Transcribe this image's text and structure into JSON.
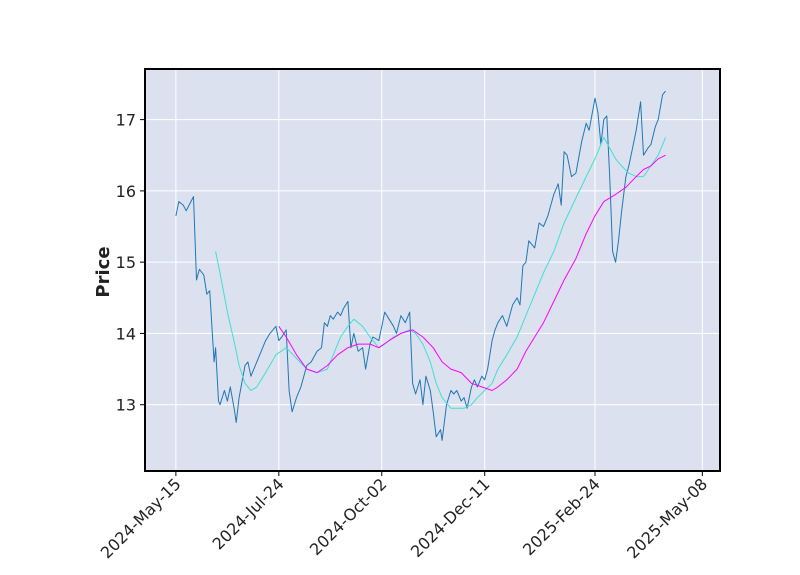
{
  "chart_data": {
    "type": "line",
    "ylabel": "Price",
    "xlabel": "",
    "ylim": [
      12.07,
      17.71
    ],
    "x_range": [
      "2024-04-24",
      "2025-05-20"
    ],
    "grid": true,
    "background_color": "#dce1ef",
    "x_tick_labels": [
      "2024-May-15",
      "2024-Jul-24",
      "2024-Oct-02",
      "2024-Dec-11",
      "2025-Feb-24",
      "2025-May-08"
    ],
    "x_tick_dates": [
      "2024-05-15",
      "2024-07-24",
      "2024-10-02",
      "2024-12-11",
      "2025-02-24",
      "2025-05-08"
    ],
    "y_ticks": [
      13,
      14,
      15,
      16,
      17
    ],
    "series": [
      {
        "color": "#1f77b4",
        "points": [
          [
            "2024-05-15",
            15.65
          ],
          [
            "2024-05-17",
            15.85
          ],
          [
            "2024-05-20",
            15.8
          ],
          [
            "2024-05-22",
            15.72
          ],
          [
            "2024-05-24",
            15.8
          ],
          [
            "2024-05-27",
            15.92
          ],
          [
            "2024-05-29",
            14.75
          ],
          [
            "2024-05-31",
            14.9
          ],
          [
            "2024-06-03",
            14.82
          ],
          [
            "2024-06-05",
            14.55
          ],
          [
            "2024-06-07",
            14.6
          ],
          [
            "2024-06-10",
            13.6
          ],
          [
            "2024-06-11",
            13.8
          ],
          [
            "2024-06-13",
            13.05
          ],
          [
            "2024-06-14",
            13.0
          ],
          [
            "2024-06-17",
            13.2
          ],
          [
            "2024-06-19",
            13.05
          ],
          [
            "2024-06-21",
            13.25
          ],
          [
            "2024-06-24",
            12.9
          ],
          [
            "2024-06-25",
            12.75
          ],
          [
            "2024-06-27",
            13.1
          ],
          [
            "2024-07-01",
            13.55
          ],
          [
            "2024-07-03",
            13.6
          ],
          [
            "2024-07-05",
            13.4
          ],
          [
            "2024-07-09",
            13.6
          ],
          [
            "2024-07-12",
            13.75
          ],
          [
            "2024-07-15",
            13.9
          ],
          [
            "2024-07-18",
            14.0
          ],
          [
            "2024-07-22",
            14.1
          ],
          [
            "2024-07-24",
            13.9
          ],
          [
            "2024-07-26",
            13.95
          ],
          [
            "2024-07-29",
            14.05
          ],
          [
            "2024-07-31",
            13.2
          ],
          [
            "2024-08-02",
            12.9
          ],
          [
            "2024-08-05",
            13.1
          ],
          [
            "2024-08-08",
            13.25
          ],
          [
            "2024-08-12",
            13.55
          ],
          [
            "2024-08-15",
            13.6
          ],
          [
            "2024-08-19",
            13.75
          ],
          [
            "2024-08-22",
            13.8
          ],
          [
            "2024-08-24",
            14.15
          ],
          [
            "2024-08-26",
            14.1
          ],
          [
            "2024-08-28",
            14.25
          ],
          [
            "2024-08-30",
            14.2
          ],
          [
            "2024-09-02",
            14.3
          ],
          [
            "2024-09-04",
            14.25
          ],
          [
            "2024-09-06",
            14.35
          ],
          [
            "2024-09-09",
            14.45
          ],
          [
            "2024-09-11",
            13.8
          ],
          [
            "2024-09-13",
            14.0
          ],
          [
            "2024-09-16",
            13.75
          ],
          [
            "2024-09-19",
            13.8
          ],
          [
            "2024-09-21",
            13.5
          ],
          [
            "2024-09-24",
            13.85
          ],
          [
            "2024-09-26",
            13.95
          ],
          [
            "2024-09-30",
            13.9
          ],
          [
            "2024-10-02",
            14.1
          ],
          [
            "2024-10-04",
            14.3
          ],
          [
            "2024-10-07",
            14.2
          ],
          [
            "2024-10-10",
            14.1
          ],
          [
            "2024-10-12",
            14.0
          ],
          [
            "2024-10-15",
            14.25
          ],
          [
            "2024-10-18",
            14.15
          ],
          [
            "2024-10-21",
            14.3
          ],
          [
            "2024-10-23",
            13.3
          ],
          [
            "2024-10-25",
            13.15
          ],
          [
            "2024-10-28",
            13.35
          ],
          [
            "2024-10-30",
            13.0
          ],
          [
            "2024-11-01",
            13.4
          ],
          [
            "2024-11-04",
            13.2
          ],
          [
            "2024-11-06",
            12.9
          ],
          [
            "2024-11-08",
            12.55
          ],
          [
            "2024-11-11",
            12.65
          ],
          [
            "2024-11-12",
            12.5
          ],
          [
            "2024-11-15",
            13.0
          ],
          [
            "2024-11-18",
            13.2
          ],
          [
            "2024-11-20",
            13.15
          ],
          [
            "2024-11-22",
            13.2
          ],
          [
            "2024-11-25",
            13.05
          ],
          [
            "2024-11-27",
            13.1
          ],
          [
            "2024-11-29",
            12.95
          ],
          [
            "2024-12-02",
            13.25
          ],
          [
            "2024-12-04",
            13.35
          ],
          [
            "2024-12-06",
            13.25
          ],
          [
            "2024-12-09",
            13.4
          ],
          [
            "2024-12-11",
            13.35
          ],
          [
            "2024-12-13",
            13.5
          ],
          [
            "2024-12-16",
            13.9
          ],
          [
            "2024-12-18",
            14.05
          ],
          [
            "2024-12-20",
            14.15
          ],
          [
            "2024-12-23",
            14.25
          ],
          [
            "2024-12-26",
            14.1
          ],
          [
            "2024-12-30",
            14.4
          ],
          [
            "2025-01-02",
            14.5
          ],
          [
            "2025-01-04",
            14.4
          ],
          [
            "2025-01-06",
            14.95
          ],
          [
            "2025-01-08",
            15.0
          ],
          [
            "2025-01-10",
            15.3
          ],
          [
            "2025-01-14",
            15.2
          ],
          [
            "2025-01-17",
            15.55
          ],
          [
            "2025-01-20",
            15.5
          ],
          [
            "2025-01-23",
            15.65
          ],
          [
            "2025-01-27",
            15.95
          ],
          [
            "2025-01-30",
            16.1
          ],
          [
            "2025-02-01",
            15.8
          ],
          [
            "2025-02-03",
            16.55
          ],
          [
            "2025-02-05",
            16.5
          ],
          [
            "2025-02-08",
            16.2
          ],
          [
            "2025-02-11",
            16.25
          ],
          [
            "2025-02-15",
            16.7
          ],
          [
            "2025-02-18",
            16.95
          ],
          [
            "2025-02-20",
            16.85
          ],
          [
            "2025-02-24",
            17.3
          ],
          [
            "2025-02-26",
            17.1
          ],
          [
            "2025-02-28",
            16.65
          ],
          [
            "2025-03-02",
            17.0
          ],
          [
            "2025-03-04",
            17.05
          ],
          [
            "2025-03-06",
            16.2
          ],
          [
            "2025-03-08",
            15.15
          ],
          [
            "2025-03-10",
            15.0
          ],
          [
            "2025-03-12",
            15.3
          ],
          [
            "2025-03-14",
            15.7
          ],
          [
            "2025-03-17",
            16.2
          ],
          [
            "2025-03-19",
            16.35
          ],
          [
            "2025-03-21",
            16.55
          ],
          [
            "2025-03-24",
            16.85
          ],
          [
            "2025-03-27",
            17.25
          ],
          [
            "2025-03-29",
            16.5
          ],
          [
            "2025-04-01",
            16.6
          ],
          [
            "2025-04-03",
            16.65
          ],
          [
            "2025-04-06",
            16.9
          ],
          [
            "2025-04-08",
            17.0
          ],
          [
            "2025-04-11",
            17.35
          ],
          [
            "2025-04-13",
            17.4
          ]
        ]
      },
      {
        "color": "#40e0d0",
        "points": [
          [
            "2024-06-11",
            15.15
          ],
          [
            "2024-06-14",
            14.85
          ],
          [
            "2024-06-19",
            14.3
          ],
          [
            "2024-06-24",
            13.85
          ],
          [
            "2024-06-27",
            13.55
          ],
          [
            "2024-07-01",
            13.3
          ],
          [
            "2024-07-05",
            13.2
          ],
          [
            "2024-07-09",
            13.25
          ],
          [
            "2024-07-15",
            13.45
          ],
          [
            "2024-07-22",
            13.7
          ],
          [
            "2024-07-29",
            13.8
          ],
          [
            "2024-08-05",
            13.65
          ],
          [
            "2024-08-12",
            13.5
          ],
          [
            "2024-08-19",
            13.45
          ],
          [
            "2024-08-26",
            13.5
          ],
          [
            "2024-08-30",
            13.7
          ],
          [
            "2024-09-04",
            13.95
          ],
          [
            "2024-09-09",
            14.1
          ],
          [
            "2024-09-13",
            14.2
          ],
          [
            "2024-09-19",
            14.1
          ],
          [
            "2024-09-24",
            13.95
          ],
          [
            "2024-09-30",
            13.8
          ],
          [
            "2024-10-04",
            13.85
          ],
          [
            "2024-10-10",
            13.95
          ],
          [
            "2024-10-15",
            14.0
          ],
          [
            "2024-10-21",
            14.05
          ],
          [
            "2024-10-25",
            14.0
          ],
          [
            "2024-10-30",
            13.85
          ],
          [
            "2024-11-04",
            13.6
          ],
          [
            "2024-11-08",
            13.3
          ],
          [
            "2024-11-12",
            13.1
          ],
          [
            "2024-11-18",
            12.95
          ],
          [
            "2024-11-22",
            12.95
          ],
          [
            "2024-11-27",
            12.95
          ],
          [
            "2024-12-02",
            13.0
          ],
          [
            "2024-12-06",
            13.1
          ],
          [
            "2024-12-11",
            13.2
          ],
          [
            "2024-12-16",
            13.3
          ],
          [
            "2024-12-20",
            13.5
          ],
          [
            "2024-12-26",
            13.7
          ],
          [
            "2025-01-02",
            13.95
          ],
          [
            "2025-01-08",
            14.25
          ],
          [
            "2025-01-14",
            14.55
          ],
          [
            "2025-01-20",
            14.85
          ],
          [
            "2025-01-27",
            15.15
          ],
          [
            "2025-02-03",
            15.55
          ],
          [
            "2025-02-11",
            15.9
          ],
          [
            "2025-02-18",
            16.2
          ],
          [
            "2025-02-24",
            16.45
          ],
          [
            "2025-02-28",
            16.65
          ],
          [
            "2025-03-02",
            16.75
          ],
          [
            "2025-03-06",
            16.6
          ],
          [
            "2025-03-10",
            16.45
          ],
          [
            "2025-03-14",
            16.35
          ],
          [
            "2025-03-19",
            16.25
          ],
          [
            "2025-03-24",
            16.2
          ],
          [
            "2025-03-29",
            16.2
          ],
          [
            "2025-04-03",
            16.35
          ],
          [
            "2025-04-08",
            16.5
          ],
          [
            "2025-04-13",
            16.75
          ]
        ]
      },
      {
        "color": "#ff00ff",
        "points": [
          [
            "2024-07-24",
            14.1
          ],
          [
            "2024-07-29",
            13.95
          ],
          [
            "2024-08-05",
            13.7
          ],
          [
            "2024-08-12",
            13.5
          ],
          [
            "2024-08-19",
            13.45
          ],
          [
            "2024-08-26",
            13.55
          ],
          [
            "2024-09-02",
            13.7
          ],
          [
            "2024-09-09",
            13.8
          ],
          [
            "2024-09-16",
            13.85
          ],
          [
            "2024-09-24",
            13.85
          ],
          [
            "2024-09-30",
            13.8
          ],
          [
            "2024-10-07",
            13.9
          ],
          [
            "2024-10-15",
            14.0
          ],
          [
            "2024-10-23",
            14.05
          ],
          [
            "2024-10-30",
            13.95
          ],
          [
            "2024-11-06",
            13.8
          ],
          [
            "2024-11-12",
            13.6
          ],
          [
            "2024-11-18",
            13.5
          ],
          [
            "2024-11-25",
            13.45
          ],
          [
            "2024-12-02",
            13.3
          ],
          [
            "2024-12-09",
            13.25
          ],
          [
            "2024-12-16",
            13.2
          ],
          [
            "2024-12-20",
            13.25
          ],
          [
            "2024-12-26",
            13.35
          ],
          [
            "2025-01-02",
            13.5
          ],
          [
            "2025-01-08",
            13.75
          ],
          [
            "2025-01-14",
            13.95
          ],
          [
            "2025-01-20",
            14.15
          ],
          [
            "2025-01-27",
            14.45
          ],
          [
            "2025-02-03",
            14.75
          ],
          [
            "2025-02-11",
            15.05
          ],
          [
            "2025-02-18",
            15.4
          ],
          [
            "2025-02-24",
            15.65
          ],
          [
            "2025-03-02",
            15.85
          ],
          [
            "2025-03-10",
            15.95
          ],
          [
            "2025-03-17",
            16.05
          ],
          [
            "2025-03-24",
            16.2
          ],
          [
            "2025-03-29",
            16.3
          ],
          [
            "2025-04-03",
            16.35
          ],
          [
            "2025-04-08",
            16.45
          ],
          [
            "2025-04-13",
            16.5
          ]
        ]
      }
    ]
  }
}
